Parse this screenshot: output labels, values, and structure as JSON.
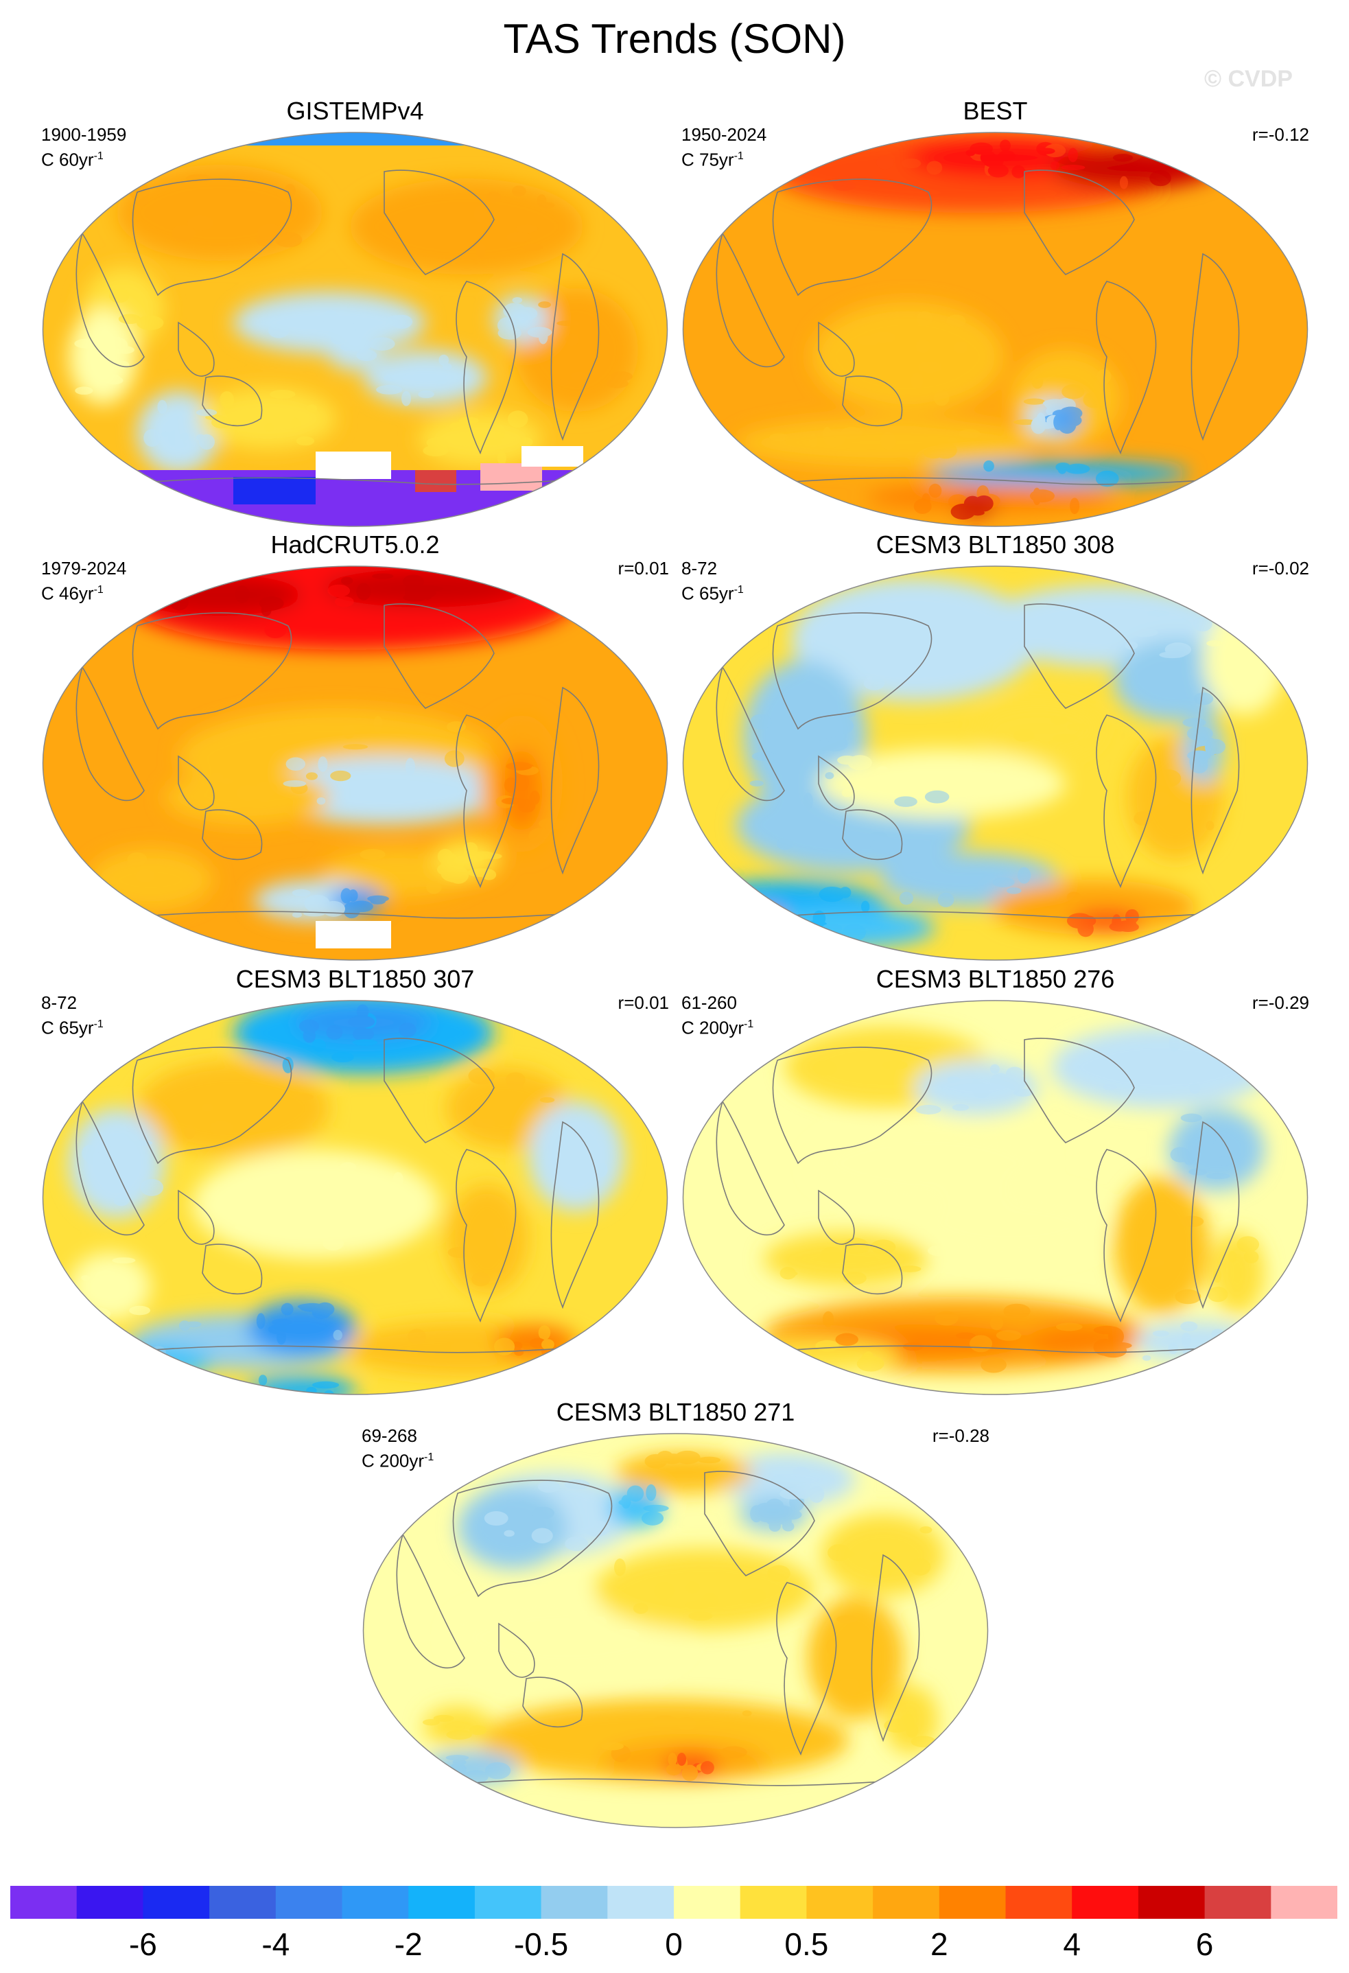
{
  "title": "TAS Trends (SON)",
  "watermark": "© CVDP",
  "panels": [
    {
      "title": "GISTEMPv4",
      "period": "1900-1959",
      "trend_label": "C 60yr",
      "trend_exp": "-1",
      "corr": ""
    },
    {
      "title": "BEST",
      "period": "1950-2024",
      "trend_label": "C 75yr",
      "trend_exp": "-1",
      "corr": "r=-0.12"
    },
    {
      "title": "HadCRUT5.0.2",
      "period": "1979-2024",
      "trend_label": "C 46yr",
      "trend_exp": "-1",
      "corr": "r=0.01"
    },
    {
      "title": "CESM3 BLT1850 308",
      "period": "8-72",
      "trend_label": "C 65yr",
      "trend_exp": "-1",
      "corr": "r=-0.02"
    },
    {
      "title": "CESM3 BLT1850 307",
      "period": "8-72",
      "trend_label": "C 65yr",
      "trend_exp": "-1",
      "corr": "r=0.01"
    },
    {
      "title": "CESM3 BLT1850 276",
      "period": "61-260",
      "trend_label": "C 200yr",
      "trend_exp": "-1",
      "corr": "r=-0.29"
    },
    {
      "title": "CESM3 BLT1850 271",
      "period": "69-268",
      "trend_label": "C 200yr",
      "trend_exp": "-1",
      "corr": "r=-0.28"
    }
  ],
  "colorbar": {
    "colors": [
      "#7b2ff2",
      "#3a16f0",
      "#1a2af2",
      "#3a62e0",
      "#3b82ee",
      "#2f98f6",
      "#14b2fa",
      "#44c4fa",
      "#93cdef",
      "#bfe3f7",
      "#ffffaa",
      "#ffe13c",
      "#ffc21f",
      "#ffa710",
      "#ff8200",
      "#ff4b10",
      "#ff0d0d",
      "#cc0000",
      "#d94040",
      "#ffb3b3"
    ],
    "labels": [
      "-6",
      "-4",
      "-2",
      "-0.5",
      "0",
      "0.5",
      "2",
      "4",
      "6"
    ]
  },
  "palette": {
    "coast": "#7a7a7a",
    "map_border": "#888888",
    "missing": "#ffffff"
  }
}
